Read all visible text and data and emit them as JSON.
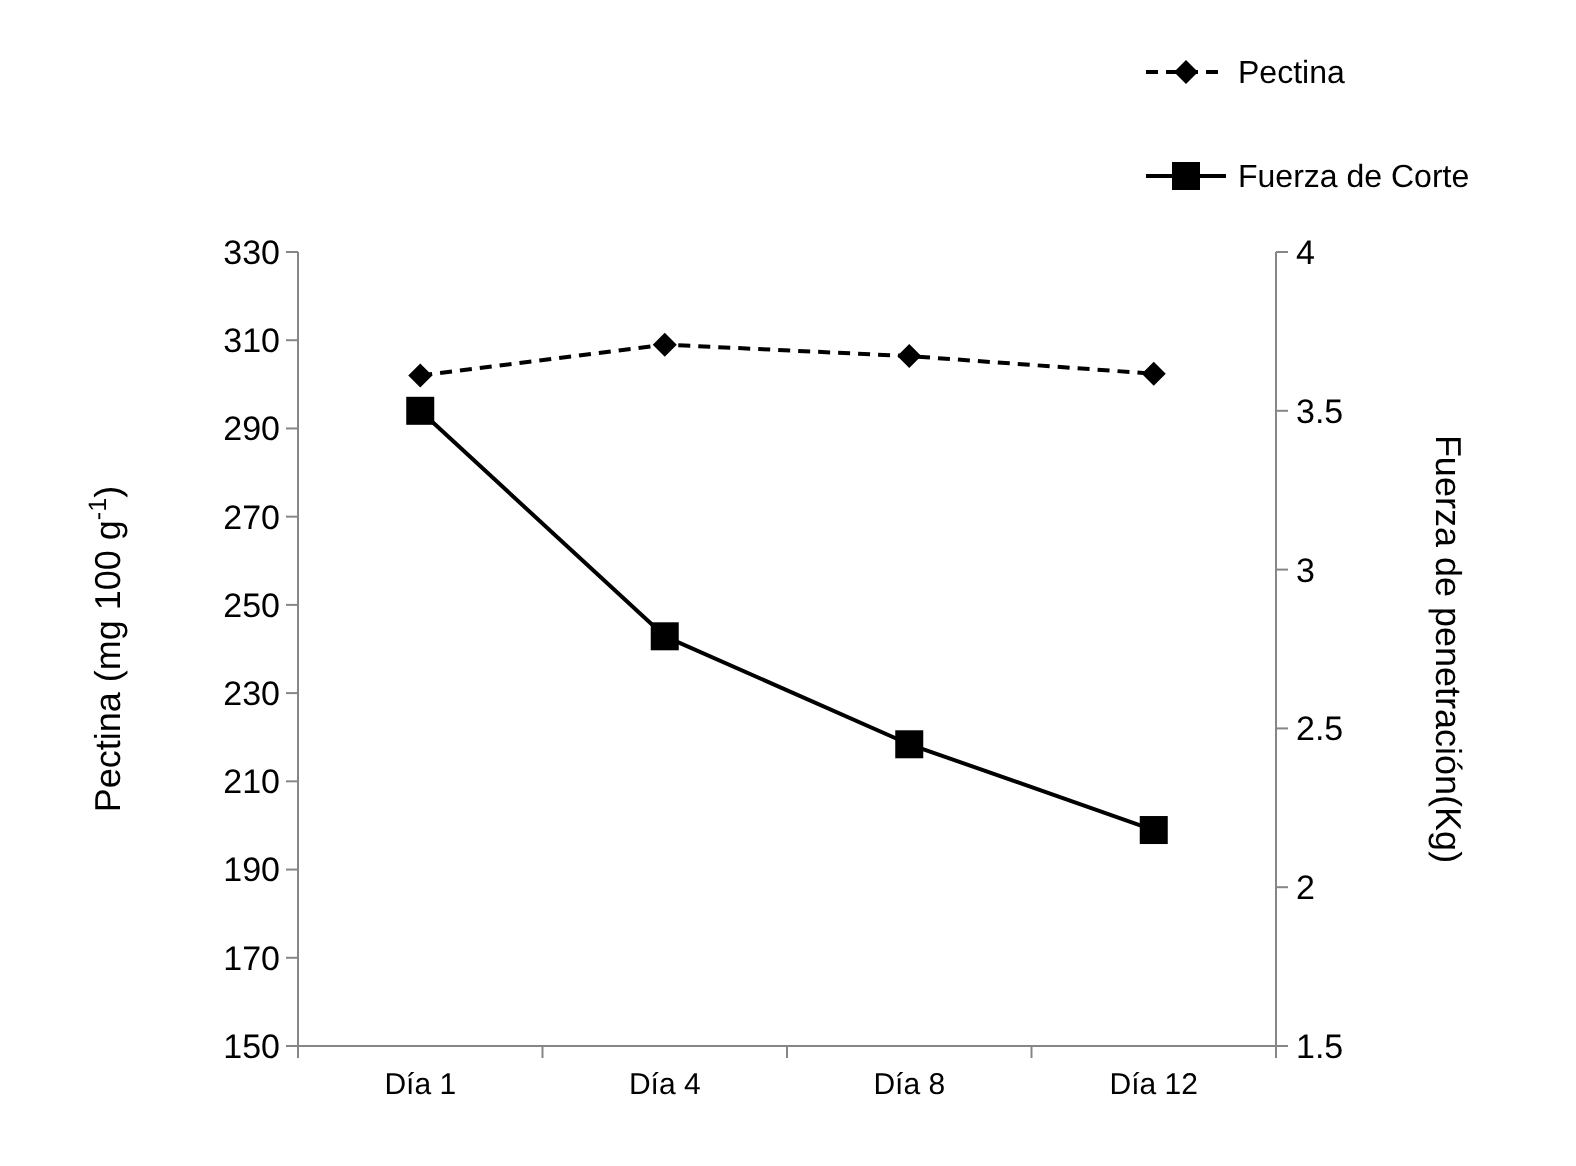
{
  "chart_data": {
    "type": "line",
    "categories": [
      "Día 1",
      "Día 4",
      "Día 8",
      "Día 12"
    ],
    "ylabel": "Pectina (mg 100 g$^{-1}$)",
    "y2label": "Fuerza de penetración(Kg)",
    "ylim": [
      150,
      330
    ],
    "yticks": [
      150,
      170,
      190,
      210,
      230,
      250,
      270,
      290,
      310,
      330
    ],
    "y2lim": [
      1.5,
      4
    ],
    "y2ticks": [
      1.5,
      2,
      2.5,
      3,
      3.5,
      4
    ],
    "legend": "top right",
    "grid": false,
    "series": [
      {
        "name": "Pectina",
        "color": "#000000",
        "values": [
          302,
          309,
          306.4,
          302.4
        ],
        "marker": "diamond",
        "line_style": "dashed"
      },
      {
        "name": "Fuerza de Corte",
        "color": "#000000",
        "values": [
          3.5,
          2.79,
          2.45,
          2.18
        ],
        "axis": "y2",
        "marker": "square",
        "line_style": "solid"
      }
    ]
  }
}
